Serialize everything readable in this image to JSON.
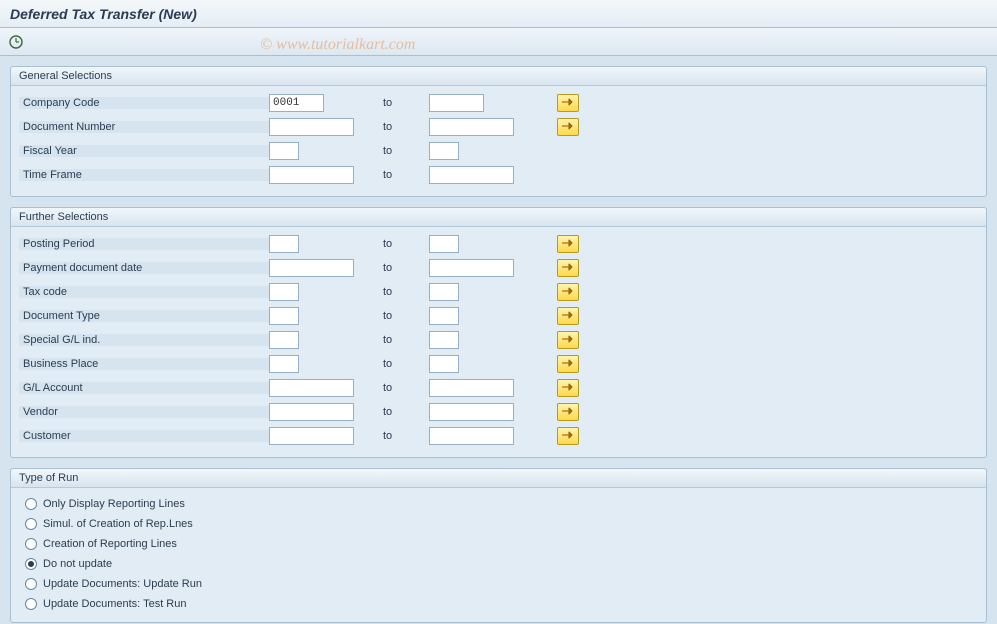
{
  "title": "Deferred Tax Transfer (New)",
  "watermark": "© www.tutorialkart.com",
  "to_label": "to",
  "general": {
    "header": "General Selections",
    "rows": [
      {
        "label": "Company Code",
        "from": "0001",
        "to": "",
        "fromW": "w-med",
        "toW": "w-med",
        "btn": true,
        "red": true
      },
      {
        "label": "Document Number",
        "from": "",
        "to": "",
        "fromW": "w-wide",
        "toW": "w-wide",
        "btn": true,
        "red": false
      },
      {
        "label": "Fiscal Year",
        "from": "",
        "to": "",
        "fromW": "w-small",
        "toW": "w-small",
        "btn": false,
        "red": false
      },
      {
        "label": "Time Frame",
        "from": "",
        "to": "",
        "fromW": "w-wide",
        "toW": "w-wide",
        "btn": false,
        "red": false
      }
    ]
  },
  "further": {
    "header": "Further Selections",
    "rows": [
      {
        "label": "Posting Period",
        "from": "",
        "to": "",
        "fromW": "w-small",
        "toW": "w-small",
        "btn": true
      },
      {
        "label": "Payment document date",
        "from": "",
        "to": "",
        "fromW": "w-wide",
        "toW": "w-wide",
        "btn": true
      },
      {
        "label": "Tax code",
        "from": "",
        "to": "",
        "fromW": "w-small",
        "toW": "w-small",
        "btn": true
      },
      {
        "label": "Document Type",
        "from": "",
        "to": "",
        "fromW": "w-small",
        "toW": "w-small",
        "btn": true
      },
      {
        "label": "Special G/L ind.",
        "from": "",
        "to": "",
        "fromW": "w-small",
        "toW": "w-small",
        "btn": true
      },
      {
        "label": "Business Place",
        "from": "",
        "to": "",
        "fromW": "w-small",
        "toW": "w-small",
        "btn": true
      },
      {
        "label": "G/L Account",
        "from": "",
        "to": "",
        "fromW": "w-wide",
        "toW": "w-wide",
        "btn": true
      },
      {
        "label": "Vendor",
        "from": "",
        "to": "",
        "fromW": "w-wide",
        "toW": "w-wide",
        "btn": true
      },
      {
        "label": "Customer",
        "from": "",
        "to": "",
        "fromW": "w-wide",
        "toW": "w-wide",
        "btn": true
      }
    ]
  },
  "runtype": {
    "header": "Type of Run",
    "options": [
      {
        "label": "Only Display Reporting Lines",
        "selected": false
      },
      {
        "label": "Simul. of Creation of Rep.Lnes",
        "selected": false
      },
      {
        "label": "Creation of Reporting Lines",
        "selected": false
      },
      {
        "label": "Do not update",
        "selected": true
      },
      {
        "label": "Update Documents: Update Run",
        "selected": false
      },
      {
        "label": "Update Documents: Test Run",
        "selected": false
      }
    ]
  },
  "colors": {
    "page_bg": "#d5e4ef",
    "panel_bg": "#e1ecf4",
    "border": "#a9c0d4",
    "btn_bg_top": "#fff3b0",
    "btn_bg_bot": "#ffd94a"
  }
}
